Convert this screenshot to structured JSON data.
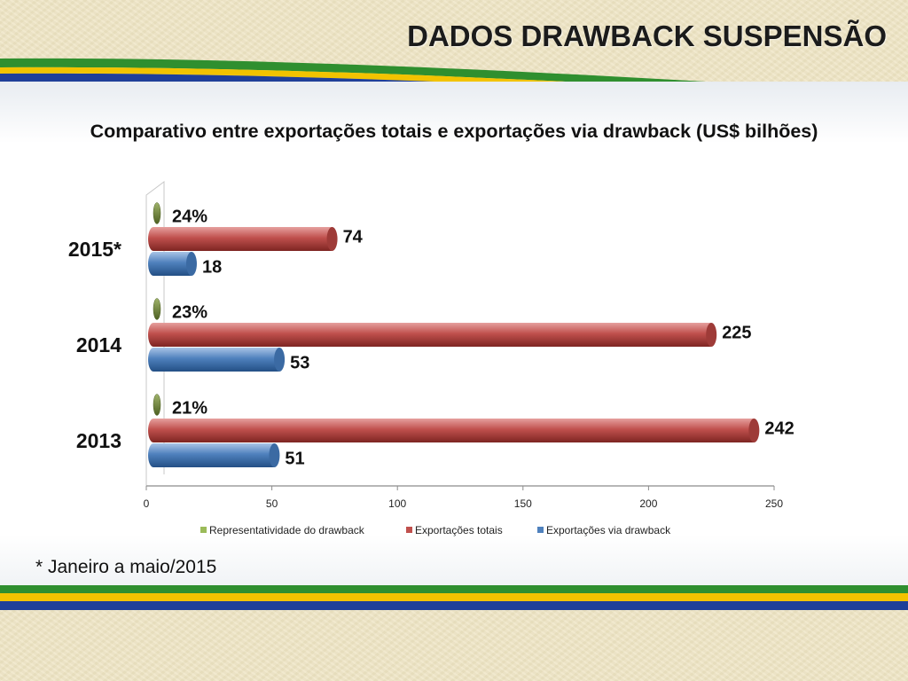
{
  "slide": {
    "title": "DADOS DRAWBACK SUSPENSÃO",
    "footnote": "* Janeiro a maio/2015"
  },
  "colors": {
    "green": "#2f8f2f",
    "yellow": "#f2c300",
    "blue": "#1f3f99",
    "series_share": "#6a7f3a",
    "series_total": "#c0504d",
    "series_drawback": "#4f81bd"
  },
  "chart_data": {
    "type": "bar",
    "orientation": "horizontal",
    "title": "Comparativo entre exportações totais e exportações via drawback (US$ bilhões)",
    "categories": [
      "2015*",
      "2014",
      "2013"
    ],
    "series": [
      {
        "name": "Representatividade do drawback",
        "values": [
          0,
          0,
          0
        ],
        "labels": [
          "24%",
          "23%",
          "21%"
        ],
        "color": "#6a7f3a"
      },
      {
        "name": "Exportações totais",
        "values": [
          74,
          225,
          242
        ],
        "labels": [
          "74",
          "225",
          "242"
        ],
        "color": "#c0504d"
      },
      {
        "name": "Exportações via drawback",
        "values": [
          18,
          53,
          51
        ],
        "labels": [
          "18",
          "53",
          "51"
        ],
        "color": "#4f81bd"
      }
    ],
    "xlim": [
      0,
      250
    ],
    "x_ticks": [
      0,
      50,
      100,
      150,
      200,
      250
    ],
    "grid": false,
    "legend_position": "bottom"
  }
}
